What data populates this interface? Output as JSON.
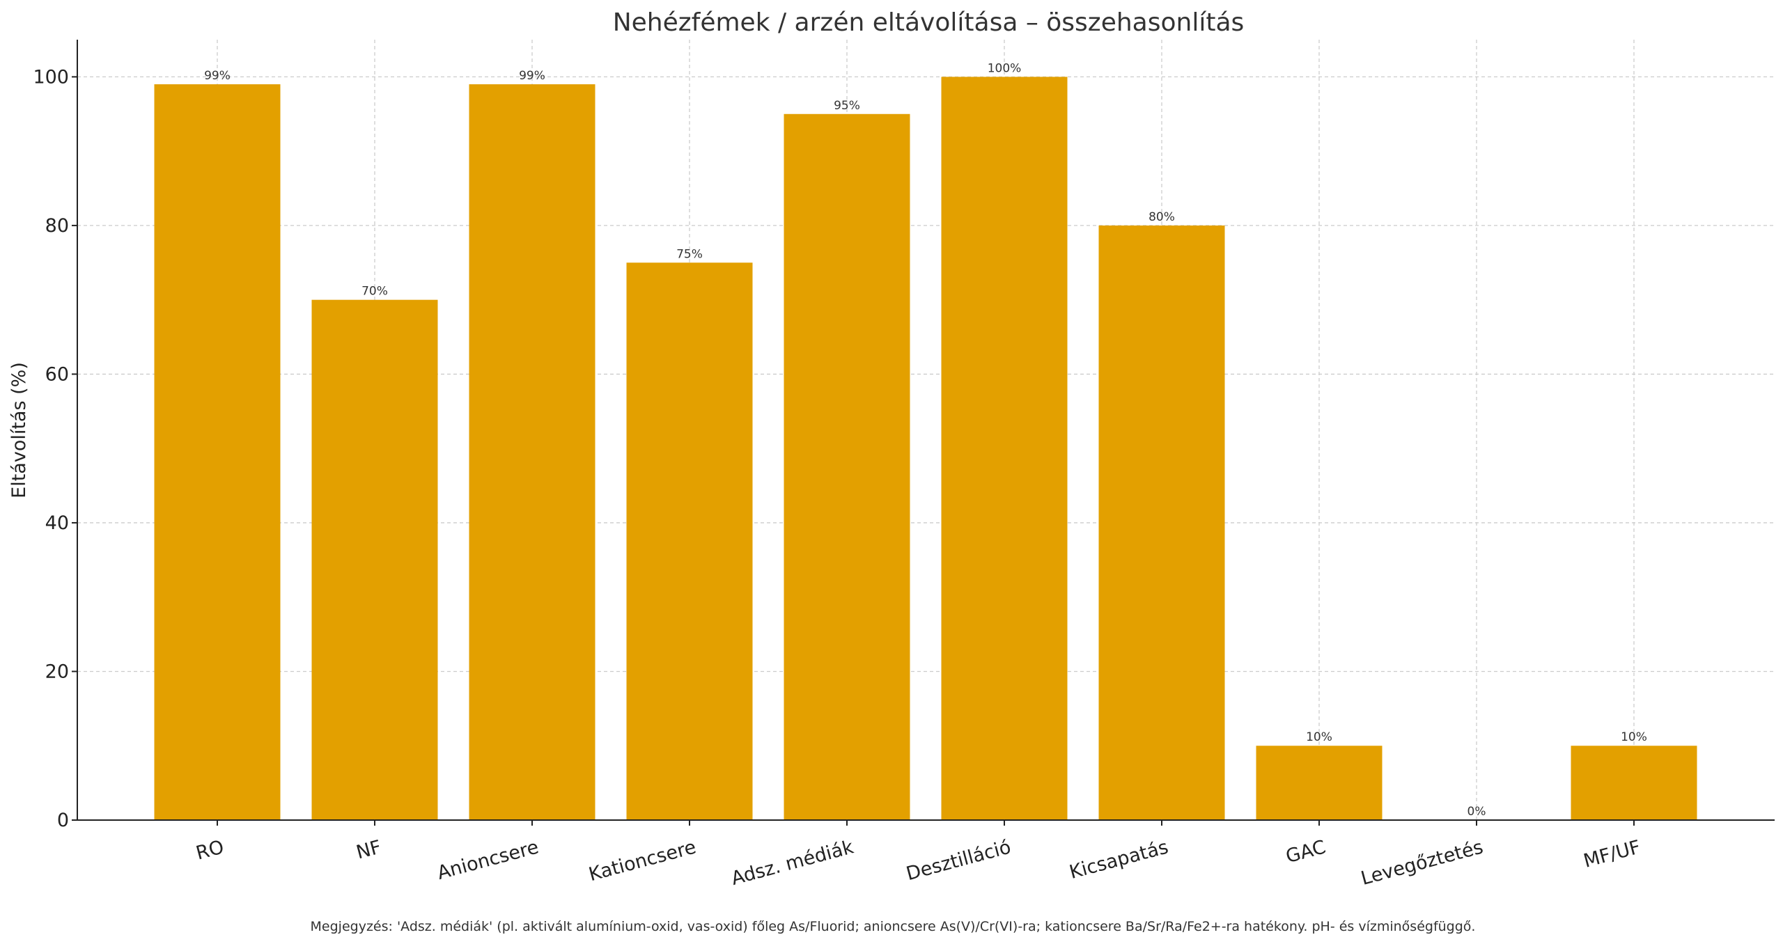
{
  "chart_data": {
    "type": "bar",
    "title": "Nehézfémek / arzén eltávolítása – összehasonlítás",
    "xlabel": "",
    "ylabel": "Eltávolítás (%)",
    "ylim": [
      0,
      105
    ],
    "yticks": [
      0,
      20,
      40,
      60,
      80,
      100
    ],
    "grid": true,
    "bar_color": "#E3A000",
    "categories": [
      "RO",
      "NF",
      "Anioncsere",
      "Kationcsere",
      "Adsz. médiák",
      "Desztilláció",
      "Kicsapatás",
      "GAC",
      "Levegőztetés",
      "MF/UF"
    ],
    "values": [
      99,
      70,
      99,
      75,
      95,
      100,
      80,
      10,
      0,
      10
    ],
    "value_labels": [
      "99%",
      "70%",
      "99%",
      "75%",
      "95%",
      "100%",
      "80%",
      "10%",
      "0%",
      "10%"
    ],
    "footnote": "Megjegyzés: 'Adsz. médiák' (pl. aktivált alumínium-oxid, vas-oxid) főleg As/Fluorid; anioncsere As(V)/Cr(VI)-ra; kationcsere Ba/Sr/Ra/Fe2+-ra hatékony. pH- és vízminőségfüggő."
  }
}
